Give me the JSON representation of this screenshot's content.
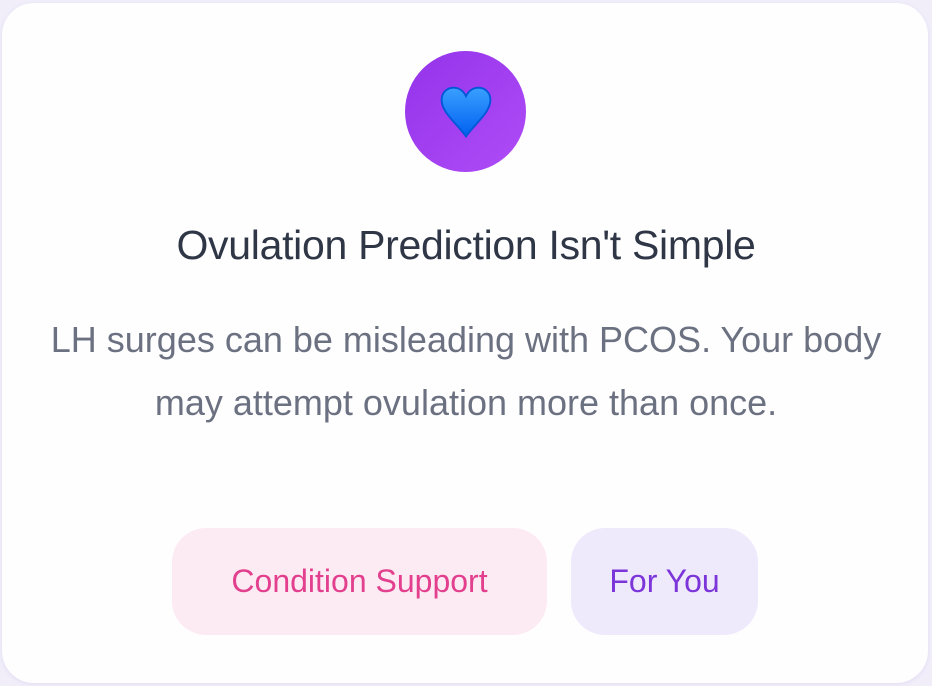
{
  "card": {
    "icon": "blue-heart-icon",
    "icon_bg_color": "#9b3cf0",
    "title": "Ovulation Prediction Isn't Simple",
    "body": "LH surges can be misleading with PCOS. Your body may attempt ovulation more than once.",
    "tags": [
      {
        "label": "Condition Support",
        "color": "#e2408e",
        "bg": "#fdebf3"
      },
      {
        "label": "For You",
        "color": "#7b35d8",
        "bg": "#efe9fc"
      }
    ]
  }
}
